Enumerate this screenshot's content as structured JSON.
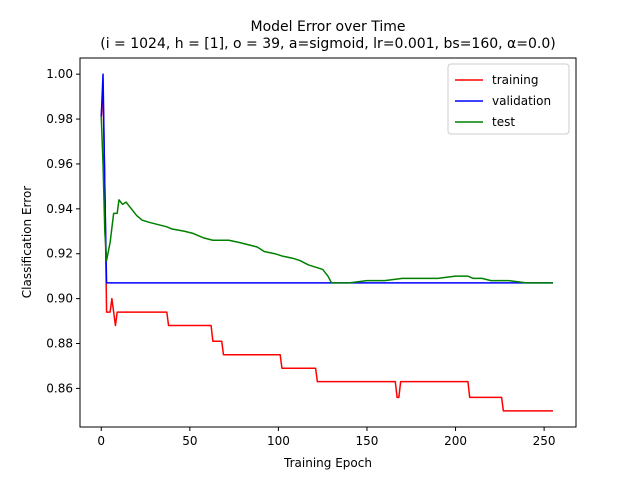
{
  "chart_data": {
    "type": "line",
    "title": "Model Error over Time",
    "subtitle": "(i = 1024, h = [1], o = 39, a=sigmoid, lr=0.001, bs=160, α=0.0)",
    "xlabel": "Training Epoch",
    "ylabel": "Classification Error",
    "xlim": [
      -12,
      268
    ],
    "ylim": [
      0.8428,
      1.0072
    ],
    "xticks": [
      0,
      50,
      100,
      150,
      200,
      250
    ],
    "yticks": [
      0.86,
      0.88,
      0.9,
      0.92,
      0.94,
      0.96,
      0.98,
      1.0
    ],
    "xtick_labels": [
      "0",
      "50",
      "100",
      "150",
      "200",
      "250"
    ],
    "ytick_labels": [
      "0.86",
      "0.88",
      "0.90",
      "0.92",
      "0.94",
      "0.96",
      "0.98",
      "1.00"
    ],
    "grid": false,
    "legend_position": "top-right",
    "series": [
      {
        "name": "training",
        "color": "#ff0000",
        "points": [
          [
            0,
            0.981
          ],
          [
            1,
            0.994
          ],
          [
            2,
            0.95
          ],
          [
            3,
            0.894
          ],
          [
            5,
            0.894
          ],
          [
            6,
            0.9
          ],
          [
            7,
            0.894
          ],
          [
            8,
            0.888
          ],
          [
            9,
            0.894
          ],
          [
            37,
            0.894
          ],
          [
            38,
            0.888
          ],
          [
            62,
            0.888
          ],
          [
            63,
            0.881
          ],
          [
            68,
            0.881
          ],
          [
            69,
            0.875
          ],
          [
            101,
            0.875
          ],
          [
            102,
            0.869
          ],
          [
            121,
            0.869
          ],
          [
            122,
            0.863
          ],
          [
            166,
            0.863
          ],
          [
            167,
            0.856
          ],
          [
            168,
            0.856
          ],
          [
            169,
            0.863
          ],
          [
            207,
            0.863
          ],
          [
            208,
            0.856
          ],
          [
            226,
            0.856
          ],
          [
            227,
            0.85
          ],
          [
            255,
            0.85
          ]
        ]
      },
      {
        "name": "validation",
        "color": "#0000ff",
        "points": [
          [
            0,
            0.981
          ],
          [
            1,
            1.0
          ],
          [
            2,
            0.95
          ],
          [
            3,
            0.907
          ],
          [
            255,
            0.907
          ]
        ]
      },
      {
        "name": "test",
        "color": "#008000",
        "points": [
          [
            0,
            0.981
          ],
          [
            1,
            0.96
          ],
          [
            2,
            0.93
          ],
          [
            3,
            0.917
          ],
          [
            5,
            0.925
          ],
          [
            7,
            0.938
          ],
          [
            9,
            0.938
          ],
          [
            10,
            0.944
          ],
          [
            12,
            0.942
          ],
          [
            14,
            0.943
          ],
          [
            17,
            0.94
          ],
          [
            20,
            0.937
          ],
          [
            23,
            0.935
          ],
          [
            27,
            0.934
          ],
          [
            32,
            0.933
          ],
          [
            37,
            0.932
          ],
          [
            40,
            0.931
          ],
          [
            47,
            0.93
          ],
          [
            52,
            0.929
          ],
          [
            55,
            0.928
          ],
          [
            58,
            0.927
          ],
          [
            63,
            0.926
          ],
          [
            72,
            0.926
          ],
          [
            78,
            0.925
          ],
          [
            83,
            0.924
          ],
          [
            88,
            0.923
          ],
          [
            92,
            0.921
          ],
          [
            98,
            0.92
          ],
          [
            102,
            0.919
          ],
          [
            108,
            0.918
          ],
          [
            112,
            0.917
          ],
          [
            117,
            0.915
          ],
          [
            121,
            0.914
          ],
          [
            125,
            0.913
          ],
          [
            128,
            0.91
          ],
          [
            130,
            0.907
          ],
          [
            140,
            0.907
          ],
          [
            150,
            0.908
          ],
          [
            160,
            0.908
          ],
          [
            170,
            0.909
          ],
          [
            180,
            0.909
          ],
          [
            190,
            0.909
          ],
          [
            200,
            0.91
          ],
          [
            207,
            0.91
          ],
          [
            210,
            0.909
          ],
          [
            215,
            0.909
          ],
          [
            220,
            0.908
          ],
          [
            230,
            0.908
          ],
          [
            240,
            0.907
          ],
          [
            255,
            0.907
          ]
        ]
      }
    ]
  }
}
